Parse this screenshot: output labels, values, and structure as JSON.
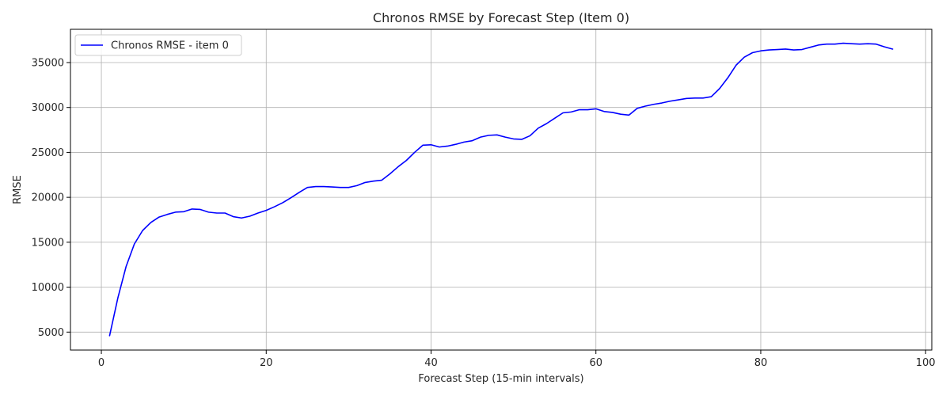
{
  "chart_data": {
    "type": "line",
    "title": "Chronos RMSE by Forecast Step (Item 0)",
    "xlabel": "Forecast Step (15-min intervals)",
    "ylabel": "RMSE",
    "xlim": [
      -3.75,
      100.75
    ],
    "ylim": [
      3000,
      38700
    ],
    "xticks": [
      0,
      20,
      40,
      60,
      80,
      100
    ],
    "yticks": [
      5000,
      10000,
      15000,
      20000,
      25000,
      30000,
      35000
    ],
    "grid": true,
    "legend": {
      "placement": "top-left"
    },
    "series": [
      {
        "name": "Chronos RMSE - item 0",
        "color": "#0000ff",
        "x": [
          1,
          2,
          3,
          4,
          5,
          6,
          7,
          8,
          9,
          10,
          11,
          12,
          13,
          14,
          15,
          16,
          17,
          18,
          19,
          20,
          21,
          22,
          23,
          24,
          25,
          26,
          27,
          28,
          29,
          30,
          31,
          32,
          33,
          34,
          35,
          36,
          37,
          38,
          39,
          40,
          41,
          42,
          43,
          44,
          45,
          46,
          47,
          48,
          49,
          50,
          51,
          52,
          53,
          54,
          55,
          56,
          57,
          58,
          59,
          60,
          61,
          62,
          63,
          64,
          65,
          66,
          67,
          68,
          69,
          70,
          71,
          72,
          73,
          74,
          75,
          76,
          77,
          78,
          79,
          80,
          81,
          82,
          83,
          84,
          85,
          86,
          87,
          88,
          89,
          90,
          91,
          92,
          93,
          94,
          95,
          96
        ],
        "y": [
          4600,
          8800,
          12300,
          14800,
          16300,
          17200,
          17800,
          18100,
          18350,
          18400,
          18700,
          18650,
          18350,
          18250,
          18250,
          17850,
          17700,
          17900,
          18250,
          18550,
          18950,
          19400,
          19950,
          20550,
          21100,
          21200,
          21200,
          21150,
          21100,
          21100,
          21300,
          21650,
          21800,
          21900,
          22600,
          23400,
          24100,
          25000,
          25800,
          25850,
          25600,
          25700,
          25900,
          26150,
          26300,
          26700,
          26900,
          26950,
          26700,
          26500,
          26450,
          26850,
          27700,
          28200,
          28800,
          29400,
          29500,
          29750,
          29750,
          29850,
          29550,
          29450,
          29250,
          29150,
          29900,
          30150,
          30350,
          30500,
          30700,
          30850,
          31000,
          31050,
          31050,
          31200,
          32100,
          33300,
          34700,
          35600,
          36100,
          36300,
          36400,
          36450,
          36500,
          36400,
          36450,
          36700,
          36950,
          37050,
          37050,
          37150,
          37100,
          37050,
          37100,
          37050,
          36750,
          36500
        ]
      }
    ]
  }
}
